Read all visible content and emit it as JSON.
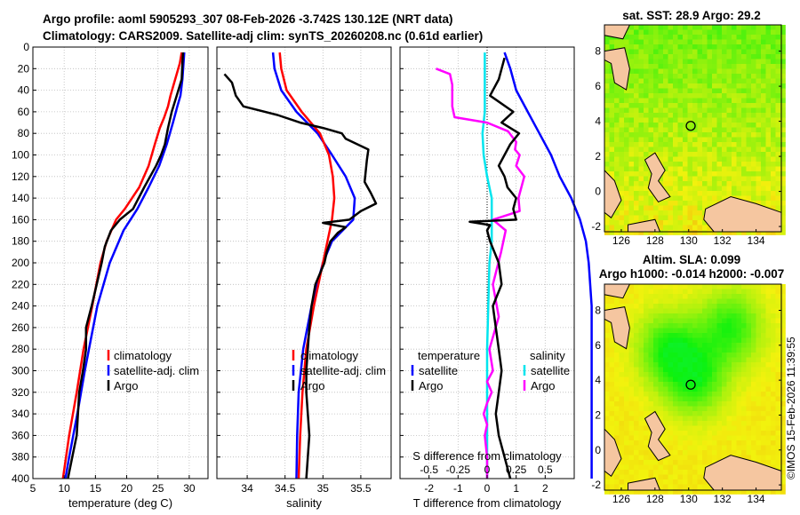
{
  "title_line1": "Argo profile: aoml 5905293_307 08-Feb-2026 -3.742S 130.12E (NRT data)",
  "title_line2": "Climatology: CARS2009. Satellite-adj clim: synTS_20260208.nc (0.61d earlier)",
  "depth_ticks": [
    0,
    20,
    40,
    60,
    80,
    100,
    120,
    140,
    160,
    180,
    200,
    220,
    240,
    260,
    280,
    300,
    320,
    340,
    360,
    380,
    400
  ],
  "colors": {
    "climatology": "#ff0000",
    "satellite": "#0000ff",
    "argo": "#000000",
    "salinity_argo": "#ff00ff",
    "salinity_sat": "#00e5ee"
  },
  "chart_data": [
    {
      "type": "line",
      "name": "temperature",
      "xlabel": "temperature (deg C)",
      "xlim": [
        5,
        33
      ],
      "xticks": [
        5,
        10,
        15,
        20,
        25,
        30
      ],
      "ylim": [
        0,
        400
      ],
      "legend": [
        "climatology",
        "satellite-adj. clim",
        "Argo"
      ],
      "series": [
        {
          "name": "climatology",
          "depth": [
            5,
            15,
            25,
            35,
            45,
            55,
            65,
            75,
            90,
            110,
            130,
            150,
            160,
            180,
            200,
            240,
            280,
            320,
            360,
            400
          ],
          "values": [
            28.8,
            28.5,
            28.0,
            27.5,
            27.0,
            26.6,
            26.0,
            25.3,
            24.5,
            23.5,
            22.0,
            19.7,
            18.3,
            16.8,
            15.8,
            14.5,
            13.1,
            12.0,
            10.8,
            9.8
          ]
        },
        {
          "name": "satellite-adj. clim",
          "depth": [
            5,
            30,
            45,
            55,
            70,
            90,
            110,
            130,
            150,
            170,
            200,
            240,
            270,
            300,
            340,
            380,
            400
          ],
          "values": [
            29.2,
            28.9,
            28.6,
            28.1,
            27.4,
            26.4,
            25.2,
            23.5,
            21.7,
            19.5,
            17.3,
            15.3,
            14.3,
            13.3,
            12.1,
            10.8,
            10.2
          ]
        },
        {
          "name": "Argo",
          "depth": [
            5,
            15,
            30,
            45,
            60,
            75,
            90,
            100,
            110,
            130,
            150,
            160,
            170,
            185,
            200,
            220,
            240,
            260,
            280,
            300,
            320,
            340,
            360,
            380,
            400
          ],
          "values": [
            29.0,
            28.9,
            28.8,
            28.0,
            27.2,
            26.6,
            26.1,
            25.5,
            24.7,
            22.8,
            21.0,
            18.9,
            17.5,
            16.5,
            16.0,
            15.2,
            14.4,
            13.5,
            13.5,
            13.0,
            12.4,
            12.2,
            12.0,
            11.3,
            10.6
          ]
        }
      ]
    },
    {
      "type": "line",
      "name": "salinity",
      "xlabel": "salinity",
      "xlim": [
        33.6,
        35.9
      ],
      "xticks": [
        34,
        34.5,
        35,
        35.5
      ],
      "ylim": [
        0,
        400
      ],
      "legend": [
        "climatology",
        "satellite-adj. clim",
        "Argo"
      ],
      "series": [
        {
          "name": "climatology",
          "depth": [
            5,
            20,
            40,
            60,
            80,
            100,
            120,
            140,
            160,
            180,
            200,
            240,
            280,
            320,
            360,
            400
          ],
          "values": [
            34.43,
            34.45,
            34.52,
            34.72,
            34.96,
            35.08,
            35.13,
            35.15,
            35.12,
            35.06,
            35.0,
            34.88,
            34.78,
            34.73,
            34.7,
            34.68
          ]
        },
        {
          "name": "satellite-adj. clim",
          "depth": [
            5,
            20,
            40,
            60,
            80,
            100,
            120,
            140,
            160,
            180,
            200,
            240,
            280,
            320,
            360,
            400
          ],
          "values": [
            34.34,
            34.36,
            34.45,
            34.65,
            34.93,
            35.12,
            35.3,
            35.42,
            35.4,
            35.12,
            35.0,
            34.85,
            34.74,
            34.68,
            34.66,
            34.65
          ]
        },
        {
          "name": "Argo",
          "depth": [
            25,
            33,
            45,
            55,
            63,
            70,
            75,
            80,
            85,
            95,
            105,
            125,
            135,
            145,
            152,
            160,
            163,
            167,
            172,
            180,
            190,
            200,
            220,
            240,
            260,
            280,
            300,
            320,
            340,
            360,
            380,
            400
          ],
          "values": [
            33.7,
            33.8,
            33.85,
            33.95,
            34.4,
            34.7,
            35.0,
            35.25,
            35.3,
            35.6,
            35.58,
            35.55,
            35.63,
            35.7,
            35.5,
            35.35,
            35.0,
            35.3,
            35.2,
            35.1,
            35.05,
            35.02,
            34.9,
            34.85,
            34.82,
            34.8,
            34.78,
            34.78,
            34.8,
            34.82,
            34.8,
            34.78
          ]
        }
      ]
    },
    {
      "type": "line",
      "name": "difference",
      "xlabel": "T difference from climatology",
      "xlabel_top": "S difference from climatology",
      "xlim": [
        -3,
        3
      ],
      "xticks": [
        -2,
        -1,
        0,
        1,
        2
      ],
      "xticks_top": [
        "-0.5",
        "-0.25",
        "0",
        "0.25",
        "0.5"
      ],
      "ylim": [
        0,
        400
      ],
      "legend_temperature": {
        "title": "temperature",
        "items": [
          "satellite",
          "Argo"
        ]
      },
      "legend_salinity": {
        "title": "salinity",
        "items": [
          "satellite",
          "Argo"
        ]
      },
      "series": [
        {
          "name": "T satellite",
          "depth": [
            5,
            20,
            40,
            60,
            80,
            100,
            120,
            140,
            160,
            180,
            200,
            240,
            280,
            320,
            360,
            400
          ],
          "values": [
            0.6,
            0.8,
            1.0,
            1.4,
            1.8,
            2.2,
            2.5,
            2.9,
            3.2,
            3.4,
            3.5,
            3.6,
            3.6,
            3.6,
            3.6,
            3.6
          ]
        },
        {
          "name": "T Argo",
          "depth": [
            10,
            30,
            45,
            60,
            70,
            80,
            90,
            100,
            110,
            120,
            130,
            140,
            150,
            160,
            162,
            165,
            170,
            180,
            200,
            220,
            240,
            260,
            280,
            300,
            320,
            340,
            360,
            380,
            400
          ],
          "values": [
            0.6,
            0.4,
            0.1,
            0.9,
            0.5,
            1.1,
            0.8,
            0.6,
            0.4,
            0.6,
            0.7,
            1.0,
            0.9,
            1.0,
            -0.6,
            0.1,
            0.0,
            0.1,
            0.4,
            0.5,
            0.2,
            0.3,
            0.4,
            0.5,
            0.4,
            0.3,
            0.4,
            0.6,
            0.8
          ]
        },
        {
          "name": "S satellite",
          "depth": [
            5,
            20,
            40,
            60,
            80,
            100,
            120,
            140,
            160,
            180,
            200,
            240,
            280,
            320,
            360,
            400
          ],
          "values": [
            -0.02,
            -0.02,
            -0.02,
            -0.02,
            -0.04,
            -0.03,
            0.0,
            0.04,
            0.04,
            0.04,
            0.02,
            0.01,
            0.0,
            0.0,
            0.0,
            0.0
          ]
        },
        {
          "name": "S Argo",
          "depth": [
            20,
            25,
            35,
            45,
            55,
            65,
            70,
            78,
            88,
            95,
            100,
            110,
            120,
            140,
            152,
            160,
            170,
            190,
            220,
            250,
            280,
            300,
            310,
            320,
            330,
            340,
            350,
            360,
            380,
            400
          ],
          "values": [
            -0.44,
            -0.32,
            -0.3,
            -0.3,
            -0.3,
            -0.28,
            0.0,
            0.18,
            0.25,
            0.24,
            0.28,
            0.25,
            0.32,
            0.27,
            0.28,
            0.05,
            0.16,
            0.12,
            0.05,
            0.1,
            0.02,
            0.05,
            0.0,
            0.04,
            0.0,
            -0.03,
            0.0,
            -0.02,
            0.0,
            0.0
          ]
        }
      ]
    },
    {
      "type": "heatmap",
      "name": "sst map",
      "title": "sat. SST: 28.9 Argo: 29.2",
      "xticks": [
        126,
        128,
        130,
        132,
        134
      ],
      "yticks": [
        -2,
        0,
        2,
        4,
        6,
        8
      ],
      "xlim": [
        125,
        135.5
      ],
      "ylim": [
        -2.3,
        9.5
      ],
      "marker": {
        "lon": 130.12,
        "lat": 3.74
      }
    },
    {
      "type": "heatmap",
      "name": "sla map",
      "title_line1": "Altim. SLA: 0.099",
      "title_line2": "Argo h1000: -0.014 h2000: -0.007",
      "xticks": [
        126,
        128,
        130,
        132,
        134
      ],
      "yticks": [
        -2,
        0,
        2,
        4,
        6,
        8
      ],
      "xlim": [
        125,
        135.5
      ],
      "ylim": [
        -2.3,
        9.5
      ],
      "marker": {
        "lon": 130.12,
        "lat": 3.74
      }
    }
  ],
  "credit": "©IMOS 15-Feb-2026 11:39:55"
}
